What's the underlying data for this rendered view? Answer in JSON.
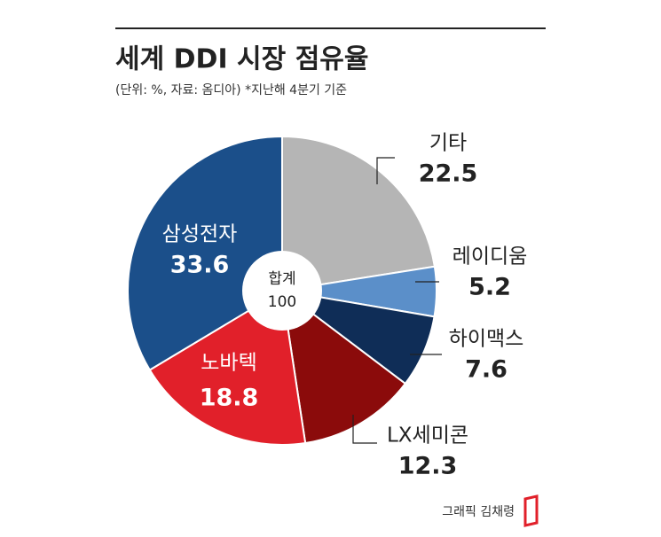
{
  "chart_data": {
    "type": "pie",
    "title": "세계 DDI 시장 점유율",
    "subtitle": "(단위: %, 자료: 옴디아)  *지난해 4분기 기준",
    "categories": [
      "기타",
      "레이디움",
      "하이맥스",
      "LX세미콘",
      "노바텍",
      "삼성전자"
    ],
    "values": [
      22.5,
      5.2,
      7.6,
      12.3,
      18.8,
      33.6
    ],
    "colors": [
      "#b5b5b5",
      "#5b8fc9",
      "#0f2d57",
      "#8b0b0b",
      "#e1202a",
      "#1b4f8a"
    ],
    "total_label": "합계",
    "total": 100,
    "credit": "그래픽 김채령"
  }
}
